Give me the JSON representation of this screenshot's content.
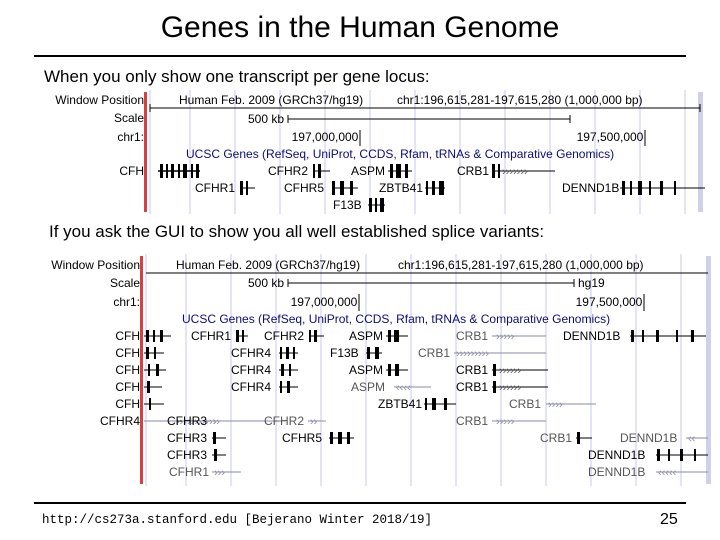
{
  "slide": {
    "title": "Genes in the Human Genome",
    "caption_top": "When you only show one transcript per gene locus:",
    "caption_bottom": "If you ask the GUI to show you all well established splice variants:",
    "footer": "http://cs273a.stanford.edu [Bejerano Winter 2018/19]",
    "page_number": "25"
  },
  "browser": {
    "row_labels": {
      "window_position": "Window Position",
      "scale": "Scale",
      "chr": "chr1:"
    },
    "assembly": "Human Feb. 2009 (GRCh37/hg19)",
    "position": "chr1:196,615,281-197,615,280 (1,000,000 bp)",
    "scale_label": "500 kb",
    "scale_db": "hg19",
    "ticks": [
      "197,000,000",
      "197,500,000"
    ],
    "track_title": "UCSC Genes (RefSeq, UniProt, CCDS, Rfam, tRNAs & Comparative Genomics)",
    "colors": {
      "gene": "#000000",
      "gene_light": "#8a8aa8",
      "track_title": "#0c0c78",
      "gridline": "#c8c8f0",
      "side_bar": "#d84040"
    }
  },
  "panel_collapsed": {
    "left_labels": [
      "CFH"
    ],
    "genes": [
      "CFHR2",
      "ASPM",
      "CRB1",
      "CFHR1",
      "CFHR5",
      "ZBTB41",
      "DENND1B",
      "F13B"
    ]
  },
  "panel_full": {
    "left_labels": [
      "CFH",
      "CFH",
      "CFH",
      "CFH",
      "CFH",
      "CFHR4"
    ],
    "genes": [
      "CFHR1",
      "CFHR2",
      "ASPM",
      "CRB1",
      "DENND1B",
      "CFHR4",
      "F13B",
      "CRB1",
      "CFHR4",
      "ASPM",
      "CRB1",
      "CFHR4",
      "ASPM",
      "CRB1",
      "ZBTB41",
      "CRB1",
      "CFHR3",
      "CFHR2",
      "CRB1",
      "CFHR3",
      "CFHR5",
      "CRB1",
      "DENND1B",
      "CFHR3",
      "DENND1B",
      "CFHR1",
      "DENND1B"
    ]
  }
}
